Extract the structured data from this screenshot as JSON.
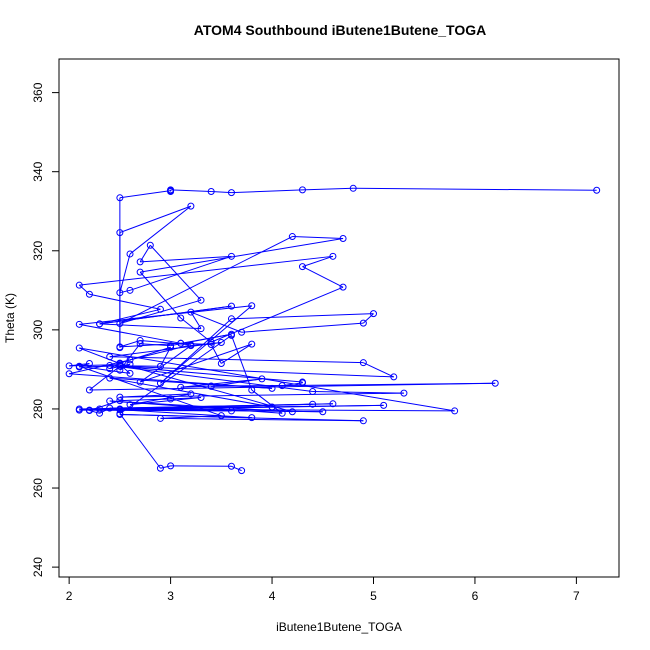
{
  "chart_data": {
    "type": "line",
    "title": "ATOM4 Southbound iButene1Butene_TOGA",
    "xlabel": "iButene1Butene_TOGA",
    "ylabel": "Theta (K)",
    "xlim": [
      1.9,
      7.42
    ],
    "ylim": [
      237.5,
      368.5
    ],
    "xticks": [
      2,
      3,
      4,
      5,
      6,
      7
    ],
    "yticks": [
      240,
      260,
      280,
      300,
      320,
      340,
      360
    ],
    "grid": false,
    "legend": "none",
    "series_color": "#0000ff",
    "series": [
      {
        "x": [
          7.2,
          4.8,
          4.3,
          3.6,
          3.4,
          3.0,
          3.0,
          3.0,
          2.5,
          2.5,
          2.5,
          3.2,
          2.6,
          2.5,
          2.6,
          3.6,
          2.7,
          2.8,
          3.3,
          2.5,
          4.2,
          4.7,
          2.7,
          3.1,
          3.4,
          4.7,
          4.3,
          4.6,
          2.1,
          2.2,
          2.9,
          2.3,
          3.6,
          2.3,
          3.3,
          3.2,
          3.7,
          4.9,
          5.0,
          3.6,
          2.9,
          3.8,
          2.1,
          3.1,
          3.4,
          3.5,
          3.8,
          2.7,
          3.2,
          3.5,
          2.4,
          4.9,
          5.2,
          2.5,
          2.2,
          6.2,
          3.4,
          3.9,
          3.1,
          3.4,
          4.1,
          4.3,
          4.3,
          2.4,
          4.4,
          5.3,
          2.5,
          3.2,
          2.6,
          3.3,
          3.0,
          2.5,
          2.2,
          2.3,
          2.4,
          4.4,
          2.2,
          5.1,
          2.3,
          4.5,
          2.1,
          4.6,
          2.1,
          3.6,
          2.5,
          3.8,
          2.5,
          4.9,
          2.9,
          3.5,
          2.1,
          2.6,
          2.5,
          2.0,
          2.2,
          2.1,
          2.5,
          2.9,
          3.0,
          2.5,
          2.4,
          2.6,
          2.5,
          2.7,
          3.0,
          3.6,
          3.1,
          2.5,
          2.7,
          3.2,
          2.6,
          2.0,
          4.0,
          2.4,
          4.0,
          2.5,
          5.8,
          2.1,
          2.5,
          4.2,
          2.4,
          4.1,
          3.8,
          3.6,
          2.5,
          2.9,
          3.0,
          3.6,
          3.7
        ],
        "y": [
          335.3,
          335.8,
          335.4,
          334.7,
          335.0,
          335.4,
          335.0,
          335.2,
          333.4,
          295.5,
          324.6,
          331.3,
          319.2,
          309.4,
          310.0,
          318.6,
          317.2,
          321.4,
          307.5,
          301.6,
          323.6,
          323.1,
          314.6,
          303.0,
          296.9,
          310.8,
          316.0,
          318.6,
          311.3,
          309.0,
          305.2,
          301.5,
          306.0,
          301.5,
          300.3,
          304.5,
          299.4,
          301.7,
          304.1,
          302.8,
          286.5,
          306.1,
          301.4,
          296.6,
          296.3,
          291.5,
          296.4,
          286.8,
          296.0,
          296.8,
          293.2,
          291.7,
          288.1,
          290.8,
          284.8,
          286.5,
          285.7,
          287.6,
          285.5,
          285.8,
          285.9,
          286.6,
          286.8,
          291.0,
          284.4,
          284.0,
          283.0,
          283.8,
          281.1,
          282.9,
          282.5,
          282.1,
          279.6,
          278.9,
          280.2,
          281.2,
          279.7,
          280.9,
          280.0,
          279.3,
          280.0,
          281.3,
          279.7,
          279.5,
          279.8,
          277.8,
          278.6,
          277.0,
          277.6,
          278.3,
          290.8,
          289.0,
          291.2,
          290.9,
          291.5,
          290.6,
          290.9,
          290.8,
          295.6,
          291.6,
          290.2,
          291.3,
          289.8,
          296.5,
          296.0,
          298.9,
          296.6,
          295.7,
          297.3,
          296.2,
          292.4,
          288.9,
          285.2,
          287.8,
          280.5,
          280.0,
          279.5,
          295.4,
          291.5,
          279.3,
          282.0,
          278.9,
          284.8,
          298.6,
          278.8,
          265.0,
          265.6,
          265.5,
          264.4
        ]
      }
    ]
  }
}
